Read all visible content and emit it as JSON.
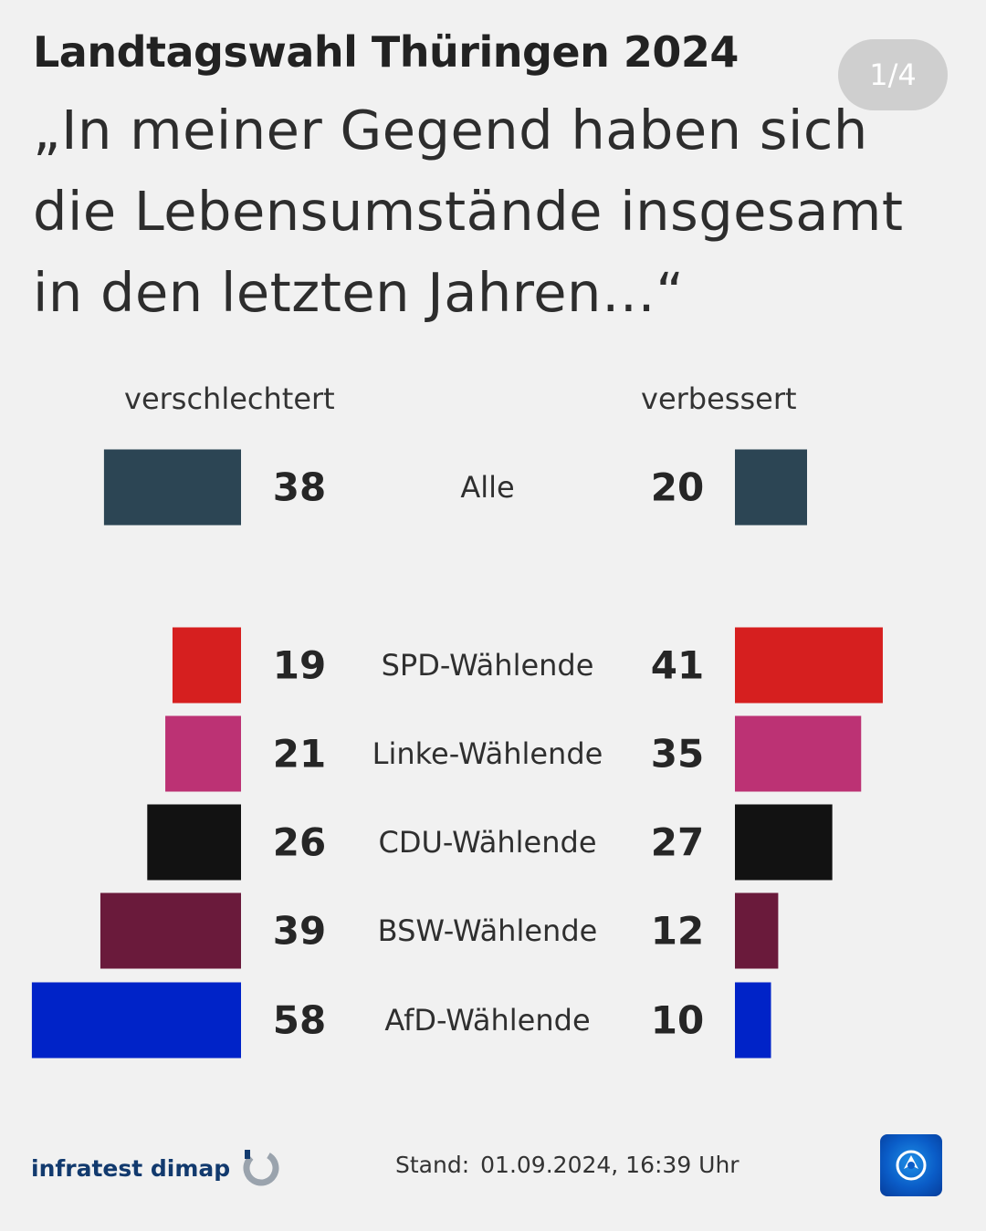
{
  "header": {
    "title": "Landtagswahl Thüringen 2024",
    "page_indicator": "1/4"
  },
  "footer": {
    "source": "infratest dimap",
    "stand_label": "Stand:",
    "stand_value": "01.09.2024, 16:39 Uhr"
  },
  "colors": {
    "Alle": "#2c4554",
    "SPD-Wählende": "#d61f1f",
    "Linke-Wählende": "#bc3274",
    "CDU-Wählende": "#121212",
    "BSW-Wählende": "#6a1a3b",
    "AfD-Wählende": "#0023c8"
  },
  "icons": {
    "source_logo": "infratest-dimap-ring-icon",
    "broadcaster_logo": "tagesschau-globe-icon"
  },
  "chart_data": {
    "type": "bar",
    "subtitle": "„In meiner Gegend haben sich die Lebensumstände insgesamt in den letzten Jahren…“",
    "unit": "%",
    "categories": [
      "Alle",
      "SPD-Wählende",
      "Linke-Wählende",
      "CDU-Wählende",
      "BSW-Wählende",
      "AfD-Wählende"
    ],
    "series": [
      {
        "name": "verschlechtert",
        "values": [
          38,
          19,
          21,
          26,
          39,
          58
        ]
      },
      {
        "name": "verbessert",
        "values": [
          20,
          41,
          35,
          27,
          12,
          10
        ]
      }
    ]
  }
}
